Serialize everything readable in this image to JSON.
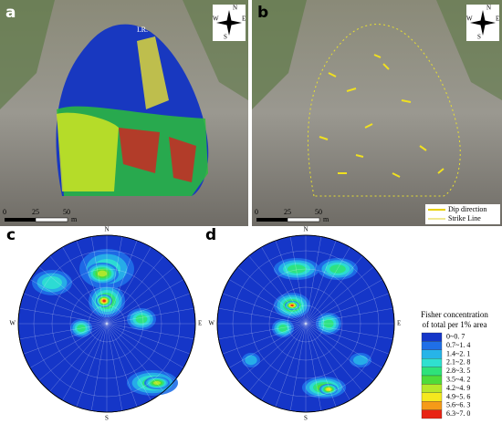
{
  "panels": [
    {
      "label": "a",
      "annotation": "I.R.",
      "scale": {
        "ticks": [
          "0",
          "25",
          "50"
        ],
        "unit": "m"
      },
      "compass": [
        "N",
        "E",
        "S",
        "W"
      ]
    },
    {
      "label": "b",
      "scale": {
        "ticks": [
          "0",
          "25",
          "50"
        ],
        "unit": "m"
      },
      "compass": [
        "N",
        "E",
        "S",
        "W"
      ],
      "legend": [
        "Dip direction",
        "Strike Line"
      ]
    }
  ],
  "stereonets": [
    {
      "label": "c",
      "directions": [
        "N",
        "E",
        "S",
        "W"
      ]
    },
    {
      "label": "d",
      "directions": [
        "N",
        "E",
        "S",
        "W"
      ]
    }
  ],
  "colorbar": {
    "title": [
      "Fisher concentration",
      "of total per 1% area"
    ],
    "classes": [
      {
        "label": "0~0. 7",
        "color": "#1536c8"
      },
      {
        "label": "0.7~1. 4",
        "color": "#1f6fe8"
      },
      {
        "label": "1.4~2. 1",
        "color": "#27b4e8"
      },
      {
        "label": "2.1~2. 8",
        "color": "#2fe0d0"
      },
      {
        "label": "2.8~3. 5",
        "color": "#2ee27a"
      },
      {
        "label": "3.5~4. 2",
        "color": "#4fdc3a"
      },
      {
        "label": "4.2~4. 9",
        "color": "#b8e82a"
      },
      {
        "label": "4.9~5. 6",
        "color": "#f5e81e"
      },
      {
        "label": "5.6~6. 3",
        "color": "#f59a18"
      },
      {
        "label": "6.3~7. 0",
        "color": "#e82414"
      }
    ]
  }
}
